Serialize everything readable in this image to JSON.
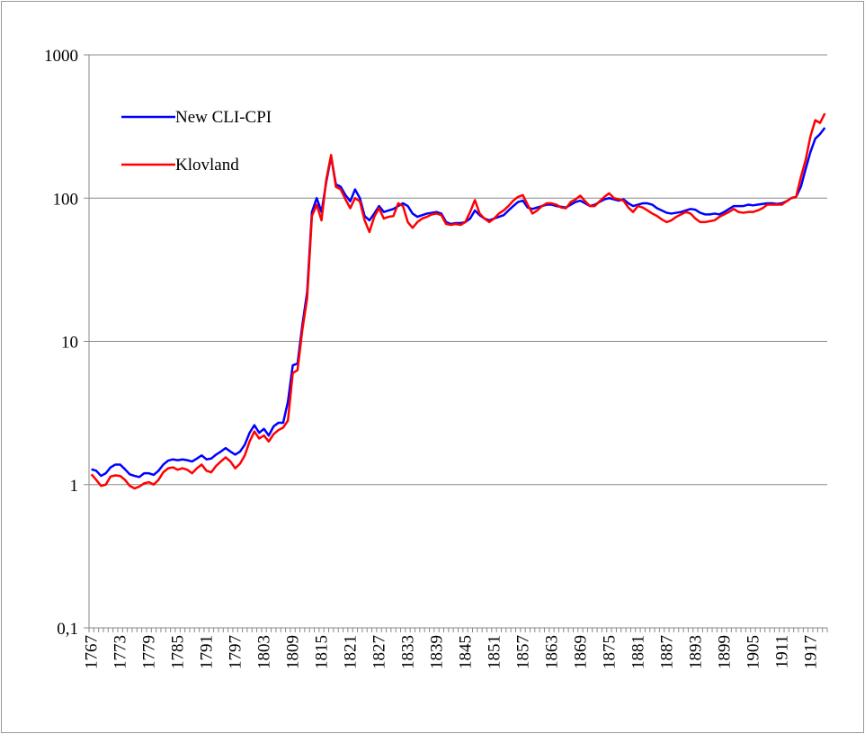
{
  "chart_data": {
    "type": "line",
    "x": [
      1767,
      1768,
      1769,
      1770,
      1771,
      1772,
      1773,
      1774,
      1775,
      1776,
      1777,
      1778,
      1779,
      1780,
      1781,
      1782,
      1783,
      1784,
      1785,
      1786,
      1787,
      1788,
      1789,
      1790,
      1791,
      1792,
      1793,
      1794,
      1795,
      1796,
      1797,
      1798,
      1799,
      1800,
      1801,
      1802,
      1803,
      1804,
      1805,
      1806,
      1807,
      1808,
      1809,
      1810,
      1811,
      1812,
      1813,
      1814,
      1815,
      1816,
      1817,
      1818,
      1819,
      1820,
      1821,
      1822,
      1823,
      1824,
      1825,
      1826,
      1827,
      1828,
      1829,
      1830,
      1831,
      1832,
      1833,
      1834,
      1835,
      1836,
      1837,
      1838,
      1839,
      1840,
      1841,
      1842,
      1843,
      1844,
      1845,
      1846,
      1847,
      1848,
      1849,
      1850,
      1851,
      1852,
      1853,
      1854,
      1855,
      1856,
      1857,
      1858,
      1859,
      1860,
      1861,
      1862,
      1863,
      1864,
      1865,
      1866,
      1867,
      1868,
      1869,
      1870,
      1871,
      1872,
      1873,
      1874,
      1875,
      1876,
      1877,
      1878,
      1879,
      1880,
      1881,
      1882,
      1883,
      1884,
      1885,
      1886,
      1887,
      1888,
      1889,
      1890,
      1891,
      1892,
      1893,
      1894,
      1895,
      1896,
      1897,
      1898,
      1899,
      1900,
      1901,
      1902,
      1903,
      1904,
      1905,
      1906,
      1907,
      1908,
      1909,
      1910,
      1911,
      1912,
      1913,
      1914,
      1915,
      1916,
      1917,
      1918,
      1919,
      1920
    ],
    "xticks": [
      1767,
      1773,
      1779,
      1785,
      1791,
      1797,
      1803,
      1809,
      1815,
      1821,
      1827,
      1833,
      1839,
      1845,
      1851,
      1857,
      1863,
      1869,
      1875,
      1881,
      1887,
      1893,
      1899,
      1905,
      1911,
      1917
    ],
    "series": [
      {
        "name": "New CLI-CPI",
        "color": "#0000ff",
        "values": [
          1.28,
          1.25,
          1.15,
          1.2,
          1.32,
          1.38,
          1.38,
          1.28,
          1.18,
          1.15,
          1.13,
          1.2,
          1.2,
          1.17,
          1.25,
          1.38,
          1.47,
          1.5,
          1.48,
          1.5,
          1.48,
          1.45,
          1.52,
          1.6,
          1.5,
          1.52,
          1.62,
          1.7,
          1.8,
          1.7,
          1.62,
          1.7,
          1.9,
          2.3,
          2.6,
          2.3,
          2.45,
          2.2,
          2.55,
          2.7,
          2.7,
          3.8,
          6.8,
          7.0,
          13,
          22,
          80,
          100,
          80,
          130,
          195,
          125,
          120,
          105,
          95,
          115,
          100,
          75,
          70,
          78,
          88,
          80,
          82,
          84,
          88,
          92,
          88,
          78,
          74,
          76,
          78,
          79,
          80,
          78,
          68,
          66,
          67,
          67,
          68,
          72,
          82,
          76,
          72,
          70,
          72,
          74,
          76,
          82,
          88,
          94,
          96,
          86,
          84,
          86,
          88,
          90,
          90,
          88,
          87,
          86,
          90,
          94,
          96,
          92,
          88,
          90,
          94,
          98,
          100,
          98,
          96,
          98,
          92,
          88,
          90,
          92,
          92,
          90,
          85,
          82,
          79,
          78,
          79,
          80,
          82,
          84,
          83,
          79,
          77,
          77,
          78,
          77,
          80,
          84,
          88,
          88,
          88,
          90,
          89,
          90,
          91,
          92,
          92,
          91,
          92,
          95,
          100,
          102,
          120,
          160,
          210,
          260,
          280,
          310
        ]
      },
      {
        "name": "Klovland",
        "color": "#ff0000",
        "values": [
          1.18,
          1.08,
          0.98,
          1.0,
          1.14,
          1.16,
          1.15,
          1.08,
          0.98,
          0.94,
          0.97,
          1.02,
          1.04,
          1.0,
          1.08,
          1.22,
          1.3,
          1.32,
          1.27,
          1.3,
          1.27,
          1.2,
          1.3,
          1.38,
          1.25,
          1.22,
          1.35,
          1.45,
          1.55,
          1.45,
          1.3,
          1.4,
          1.6,
          2.0,
          2.35,
          2.1,
          2.2,
          2.0,
          2.25,
          2.4,
          2.5,
          2.8,
          6.0,
          6.3,
          12,
          20,
          75,
          90,
          70,
          135,
          200,
          120,
          115,
          98,
          85,
          100,
          95,
          70,
          58,
          74,
          85,
          72,
          74,
          75,
          92,
          88,
          68,
          62,
          68,
          72,
          74,
          77,
          78,
          76,
          66,
          65,
          66,
          65,
          68,
          80,
          97,
          78,
          72,
          68,
          72,
          78,
          82,
          88,
          96,
          102,
          105,
          90,
          78,
          82,
          88,
          92,
          92,
          90,
          86,
          85,
          94,
          98,
          104,
          95,
          88,
          88,
          95,
          102,
          108,
          100,
          98,
          96,
          86,
          80,
          88,
          86,
          82,
          78,
          75,
          71,
          68,
          70,
          74,
          77,
          80,
          78,
          72,
          68,
          68,
          69,
          70,
          74,
          77,
          80,
          84,
          80,
          79,
          80,
          80,
          82,
          85,
          90,
          90,
          90,
          90,
          95,
          100,
          102,
          140,
          185,
          270,
          350,
          335,
          390
        ]
      }
    ],
    "ylim": [
      0.1,
      1000
    ],
    "log_y": true,
    "yticks": [
      {
        "value": 0.1,
        "label": "0,1"
      },
      1,
      10,
      100,
      1000
    ],
    "grid": true,
    "legend": "upper left"
  }
}
